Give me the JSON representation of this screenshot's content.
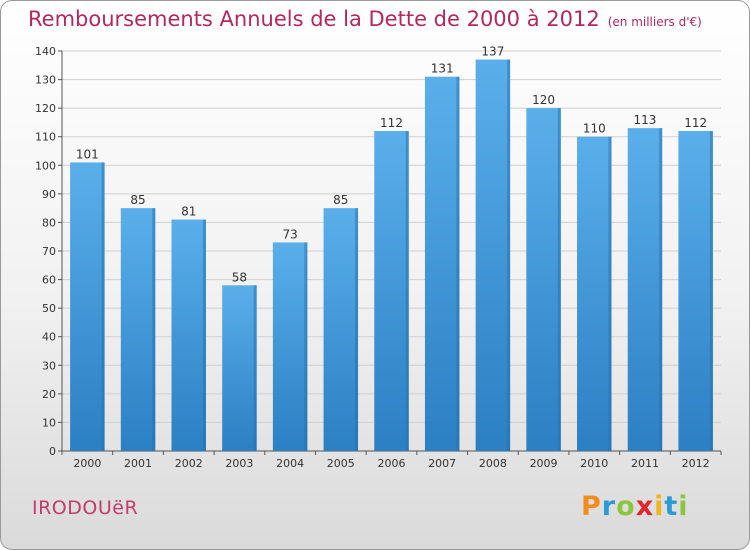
{
  "header": {
    "title": "Remboursements Annuels de la Dette de 2000 à 2012",
    "unit": "(en milliers d'€)"
  },
  "footer": {
    "commune": "IRODOUëR",
    "logo_letters": [
      {
        "char": "P",
        "color": "#f28c1e"
      },
      {
        "char": "r",
        "color": "#2a9ad8"
      },
      {
        "char": "o",
        "color": "#8cc63f"
      },
      {
        "char": "x",
        "color": "#e3262e"
      },
      {
        "char": "i",
        "color": "#f2b41e"
      },
      {
        "char": "t",
        "color": "#2a9ad8"
      },
      {
        "char": "i",
        "color": "#8cc63f"
      }
    ]
  },
  "chart_data": {
    "type": "bar",
    "categories": [
      "2000",
      "2001",
      "2002",
      "2003",
      "2004",
      "2005",
      "2006",
      "2007",
      "2008",
      "2009",
      "2010",
      "2011",
      "2012"
    ],
    "values": [
      101,
      85,
      81,
      58,
      73,
      85,
      112,
      131,
      137,
      120,
      110,
      113,
      112
    ],
    "ylim": [
      0,
      140
    ],
    "yticks": [
      0,
      10,
      20,
      30,
      40,
      50,
      60,
      70,
      80,
      90,
      100,
      110,
      120,
      130,
      140
    ],
    "grid": true,
    "bar_color": "#3d92d6",
    "title": "Remboursements Annuels de la Dette de 2000 à 2012",
    "xlabel": "",
    "ylabel": ""
  }
}
